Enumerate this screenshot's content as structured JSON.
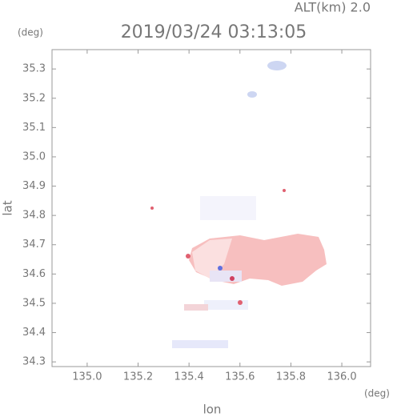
{
  "chart_data": {
    "type": "map",
    "title": "2019/03/24 03:13:05",
    "subtitle": "ALT(km) 2.0",
    "x_label": "lon",
    "y_label": "lat",
    "x_unit": "(deg)",
    "y_unit": "(deg)",
    "xlim": [
      134.862,
      136.113
    ],
    "ylim": [
      34.284,
      35.366
    ],
    "xticks": [
      {
        "value": 135,
        "label": "135.0"
      },
      135.2,
      135.4,
      135.6,
      135.8,
      {
        "value": 136,
        "label": "136.0"
      }
    ],
    "yticks": [
      34.3,
      34.4,
      34.5,
      34.6,
      34.7,
      34.8,
      34.9,
      {
        "value": 35,
        "label": "35.0"
      },
      35.1,
      35.2,
      35.3
    ]
  }
}
